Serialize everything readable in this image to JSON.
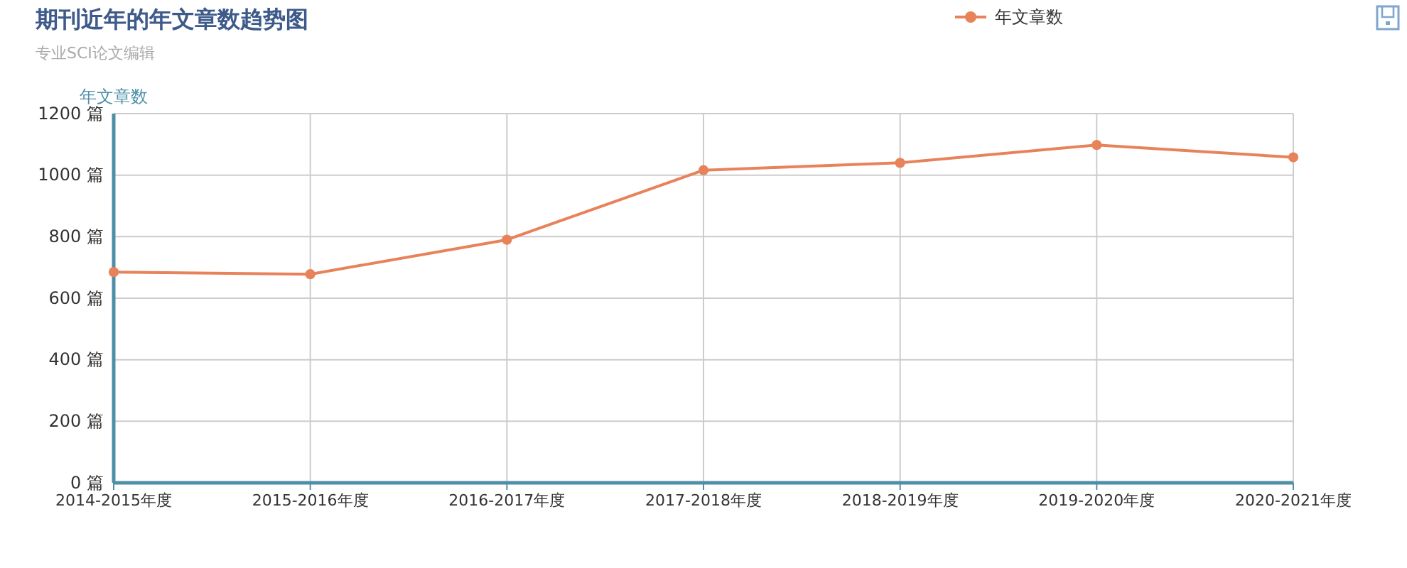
{
  "chart_data": {
    "type": "line",
    "title": "期刊近年的年文章数趋势图",
    "subtitle": "专业SCI论文编辑",
    "ylabel": "年文章数",
    "categories": [
      "2014-2015年度",
      "2015-2016年度",
      "2016-2017年度",
      "2017-2018年度",
      "2018-2019年度",
      "2019-2020年度",
      "2020-2021年度"
    ],
    "series": [
      {
        "name": "年文章数",
        "color": "#e8825a",
        "values": [
          685,
          678,
          790,
          1016,
          1040,
          1098,
          1058
        ]
      }
    ],
    "ylim": [
      0,
      1200
    ],
    "yticks": [
      {
        "value": 0,
        "label": "0 篇"
      },
      {
        "value": 200,
        "label": "200 篇"
      },
      {
        "value": 400,
        "label": "400 篇"
      },
      {
        "value": 600,
        "label": "600 篇"
      },
      {
        "value": 800,
        "label": "800 篇"
      },
      {
        "value": 1000,
        "label": "1000 篇"
      },
      {
        "value": 1200,
        "label": "1200 篇"
      }
    ],
    "grid": true,
    "legend": "top right",
    "marker": "circle",
    "line_style": "solid"
  }
}
